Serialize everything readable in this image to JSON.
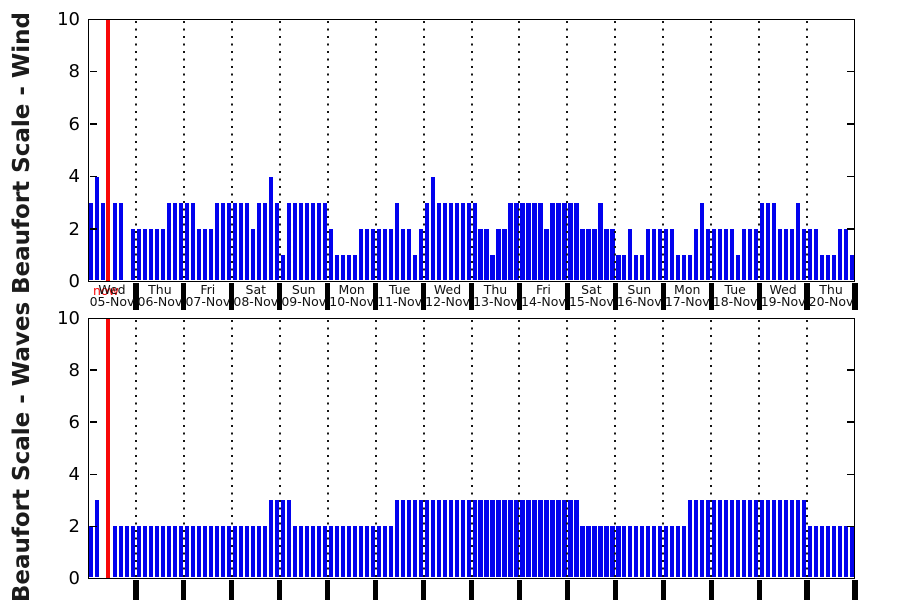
{
  "titles": {
    "wind_axis_label": "Beaufort Scale - Wind",
    "waves_axis_label": "Beaufort Scale - Waves"
  },
  "now_marker": {
    "label": "now",
    "color": "#f80707"
  },
  "colors": {
    "bar": "#0202ee",
    "now_line": "#f80707",
    "axis": "#000000",
    "axis_title": "#1c1c1c"
  },
  "yticks": [
    "0",
    "2",
    "4",
    "6",
    "8",
    "10"
  ],
  "days": [
    {
      "weekday": "Wed",
      "date": "05-Nov"
    },
    {
      "weekday": "Thu",
      "date": "06-Nov"
    },
    {
      "weekday": "Fri",
      "date": "07-Nov"
    },
    {
      "weekday": "Sat",
      "date": "08-Nov"
    },
    {
      "weekday": "Sun",
      "date": "09-Nov"
    },
    {
      "weekday": "Mon",
      "date": "10-Nov"
    },
    {
      "weekday": "Tue",
      "date": "11-Nov"
    },
    {
      "weekday": "Wed",
      "date": "12-Nov"
    },
    {
      "weekday": "Thu",
      "date": "13-Nov"
    },
    {
      "weekday": "Fri",
      "date": "14-Nov"
    },
    {
      "weekday": "Sat",
      "date": "15-Nov"
    },
    {
      "weekday": "Sun",
      "date": "16-Nov"
    },
    {
      "weekday": "Mon",
      "date": "17-Nov"
    },
    {
      "weekday": "Tue",
      "date": "18-Nov"
    },
    {
      "weekday": "Wed",
      "date": "19-Nov"
    },
    {
      "weekday": "Thu",
      "date": "20-Nov"
    }
  ],
  "chart_data": [
    {
      "type": "bar",
      "name": "wind",
      "title": "",
      "ylabel": "Beaufort Scale - Wind",
      "xlabel": "",
      "ylim": [
        0,
        10
      ],
      "yticks": [
        0,
        2,
        4,
        6,
        8,
        10
      ],
      "grid": "vertical dotted lines at day boundaries",
      "legend": null,
      "bars_per_day": 8,
      "interval_hours": 3,
      "categories": [
        "Wed 05-Nov",
        "Thu 06-Nov",
        "Fri 07-Nov",
        "Sat 08-Nov",
        "Sun 09-Nov",
        "Mon 10-Nov",
        "Tue 11-Nov",
        "Wed 12-Nov",
        "Thu 13-Nov",
        "Fri 14-Nov",
        "Sat 15-Nov",
        "Sun 16-Nov",
        "Mon 17-Nov",
        "Tue 18-Nov",
        "Wed 19-Nov",
        "Thu 20-Nov"
      ],
      "series": [
        {
          "name": "Wind Beaufort",
          "values_by_day": [
            [
              3,
              4,
              3,
              null,
              3,
              3,
              null,
              2
            ],
            [
              2,
              2,
              2,
              2,
              2,
              3,
              3,
              3
            ],
            [
              3,
              3,
              2,
              2,
              2,
              3,
              3,
              3
            ],
            [
              3,
              3,
              3,
              2,
              3,
              3,
              4,
              3
            ],
            [
              1,
              3,
              3,
              3,
              3,
              3,
              3,
              3
            ],
            [
              2,
              1,
              1,
              1,
              1,
              2,
              2,
              2
            ],
            [
              2,
              2,
              2,
              3,
              2,
              2,
              1,
              2
            ],
            [
              3,
              4,
              3,
              3,
              3,
              3,
              3,
              3
            ],
            [
              3,
              2,
              2,
              1,
              2,
              2,
              3,
              3
            ],
            [
              3,
              3,
              3,
              3,
              2,
              3,
              3,
              3
            ],
            [
              3,
              3,
              2,
              2,
              2,
              3,
              2,
              2
            ],
            [
              1,
              1,
              2,
              1,
              1,
              2,
              2,
              2
            ],
            [
              2,
              2,
              1,
              1,
              1,
              2,
              3,
              2
            ],
            [
              2,
              2,
              2,
              2,
              1,
              2,
              2,
              2
            ],
            [
              3,
              3,
              3,
              2,
              2,
              2,
              3,
              2
            ],
            [
              2,
              2,
              1,
              1,
              1,
              2,
              2,
              1
            ]
          ]
        }
      ],
      "now_marker": {
        "day_index": 0,
        "slot_index": 3,
        "style": "red vertical line full height"
      }
    },
    {
      "type": "bar",
      "name": "waves",
      "title": "",
      "ylabel": "Beaufort Scale - Waves",
      "xlabel": "",
      "ylim": [
        0,
        10
      ],
      "yticks": [
        0,
        2,
        4,
        6,
        8,
        10
      ],
      "grid": "vertical dotted lines at day boundaries",
      "legend": null,
      "bars_per_day": 8,
      "interval_hours": 3,
      "categories": [
        "Wed 05-Nov",
        "Thu 06-Nov",
        "Fri 07-Nov",
        "Sat 08-Nov",
        "Sun 09-Nov",
        "Mon 10-Nov",
        "Tue 11-Nov",
        "Wed 12-Nov",
        "Thu 13-Nov",
        "Fri 14-Nov",
        "Sat 15-Nov",
        "Sun 16-Nov",
        "Mon 17-Nov",
        "Tue 18-Nov",
        "Wed 19-Nov",
        "Thu 20-Nov"
      ],
      "series": [
        {
          "name": "Waves Beaufort",
          "values_by_day": [
            [
              2,
              3,
              null,
              null,
              2,
              2,
              2,
              2
            ],
            [
              2,
              2,
              2,
              2,
              2,
              2,
              2,
              2
            ],
            [
              2,
              2,
              2,
              2,
              2,
              2,
              2,
              2
            ],
            [
              2,
              2,
              2,
              2,
              2,
              2,
              3,
              3
            ],
            [
              3,
              3,
              2,
              2,
              2,
              2,
              2,
              2
            ],
            [
              2,
              2,
              2,
              2,
              2,
              2,
              2,
              2
            ],
            [
              2,
              2,
              2,
              3,
              3,
              3,
              3,
              3
            ],
            [
              3,
              3,
              3,
              3,
              3,
              3,
              3,
              3
            ],
            [
              3,
              3,
              3,
              3,
              3,
              3,
              3,
              3
            ],
            [
              3,
              3,
              3,
              3,
              3,
              3,
              3,
              3
            ],
            [
              3,
              3,
              2,
              2,
              2,
              2,
              2,
              2
            ],
            [
              2,
              2,
              2,
              2,
              2,
              2,
              2,
              2
            ],
            [
              2,
              2,
              2,
              2,
              3,
              3,
              3,
              3
            ],
            [
              3,
              3,
              3,
              3,
              3,
              3,
              3,
              3
            ],
            [
              3,
              3,
              3,
              3,
              3,
              3,
              3,
              3
            ],
            [
              2,
              2,
              2,
              2,
              2,
              2,
              2,
              2
            ]
          ]
        }
      ],
      "now_marker": {
        "day_index": 0,
        "slot_index": 3,
        "style": "red vertical line full height"
      }
    }
  ]
}
